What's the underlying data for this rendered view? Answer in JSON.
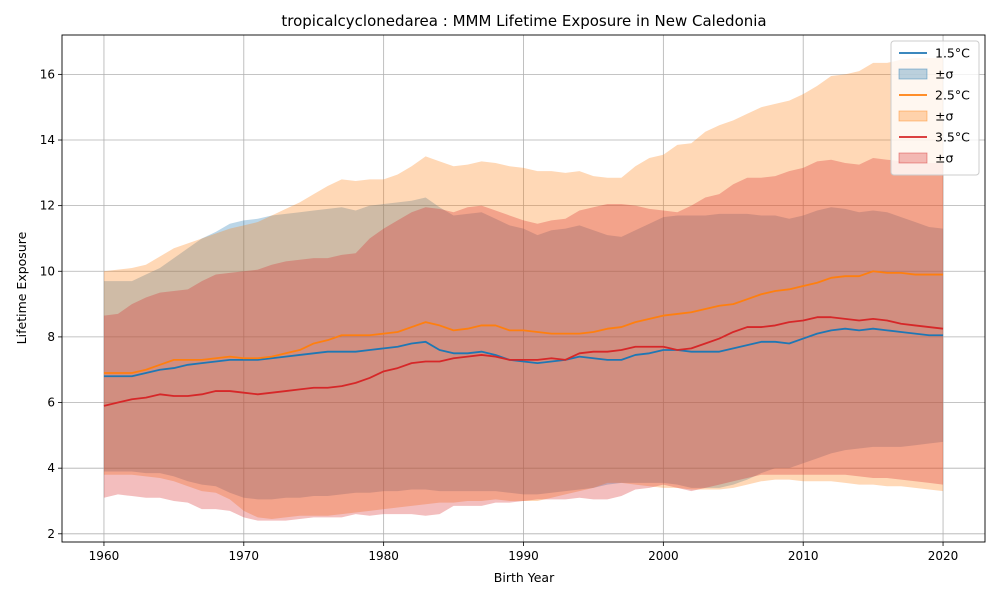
{
  "chart_data": {
    "type": "line",
    "title": "tropicalcyclonedarea : MMM Lifetime Exposure in New Caledonia",
    "xlabel": "Birth Year",
    "ylabel": "Lifetime Exposure",
    "xlim": [
      1957,
      2023
    ],
    "ylim": [
      1.75,
      17.2
    ],
    "xticks": [
      1960,
      1970,
      1980,
      1990,
      2000,
      2010,
      2020
    ],
    "yticks": [
      2,
      4,
      6,
      8,
      10,
      12,
      14,
      16
    ],
    "grid": true,
    "legend_position": "top-right",
    "x_start": 1960,
    "x_step": 1,
    "series": [
      {
        "name": "1.5°C",
        "band_name": "±σ",
        "color": "#1f77b4",
        "band_color": "#1f77b4",
        "band_alpha": 0.3,
        "mean": [
          6.8,
          6.8,
          6.8,
          6.9,
          7.0,
          7.05,
          7.15,
          7.2,
          7.25,
          7.3,
          7.3,
          7.3,
          7.35,
          7.4,
          7.45,
          7.5,
          7.55,
          7.55,
          7.55,
          7.6,
          7.65,
          7.7,
          7.8,
          7.85,
          7.6,
          7.5,
          7.5,
          7.55,
          7.45,
          7.3,
          7.25,
          7.2,
          7.25,
          7.3,
          7.4,
          7.35,
          7.3,
          7.3,
          7.45,
          7.5,
          7.6,
          7.6,
          7.55,
          7.55,
          7.55,
          7.65,
          7.75,
          7.85,
          7.85,
          7.8,
          7.95,
          8.1,
          8.2,
          8.25,
          8.2,
          8.25,
          8.2,
          8.15,
          8.1,
          8.05,
          8.05
        ],
        "upper": [
          9.7,
          9.7,
          9.7,
          9.9,
          10.1,
          10.4,
          10.7,
          11.0,
          11.2,
          11.45,
          11.55,
          11.6,
          11.7,
          11.75,
          11.8,
          11.85,
          11.9,
          11.95,
          11.85,
          12.0,
          12.05,
          12.1,
          12.15,
          12.25,
          11.95,
          11.7,
          11.75,
          11.8,
          11.6,
          11.4,
          11.3,
          11.1,
          11.25,
          11.3,
          11.4,
          11.25,
          11.1,
          11.05,
          11.25,
          11.45,
          11.65,
          11.7,
          11.7,
          11.7,
          11.75,
          11.75,
          11.75,
          11.7,
          11.7,
          11.6,
          11.7,
          11.85,
          11.95,
          11.9,
          11.8,
          11.85,
          11.8,
          11.65,
          11.5,
          11.35,
          11.3
        ],
        "lower": [
          3.9,
          3.9,
          3.9,
          3.85,
          3.85,
          3.75,
          3.6,
          3.5,
          3.45,
          3.25,
          3.1,
          3.05,
          3.05,
          3.1,
          3.1,
          3.15,
          3.15,
          3.2,
          3.25,
          3.25,
          3.3,
          3.3,
          3.35,
          3.35,
          3.3,
          3.3,
          3.3,
          3.3,
          3.3,
          3.25,
          3.2,
          3.2,
          3.25,
          3.3,
          3.35,
          3.4,
          3.5,
          3.55,
          3.55,
          3.55,
          3.55,
          3.5,
          3.4,
          3.4,
          3.4,
          3.5,
          3.65,
          3.85,
          4.0,
          4.0,
          4.15,
          4.3,
          4.45,
          4.55,
          4.6,
          4.65,
          4.65,
          4.65,
          4.7,
          4.75,
          4.8
        ]
      },
      {
        "name": "2.5°C",
        "band_name": "±σ",
        "color": "#ff7f0e",
        "band_color": "#ff7f0e",
        "band_alpha": 0.3,
        "mean": [
          6.9,
          6.9,
          6.9,
          7.0,
          7.15,
          7.3,
          7.3,
          7.3,
          7.35,
          7.4,
          7.35,
          7.35,
          7.4,
          7.5,
          7.6,
          7.8,
          7.9,
          8.05,
          8.05,
          8.05,
          8.1,
          8.15,
          8.3,
          8.45,
          8.35,
          8.2,
          8.25,
          8.35,
          8.35,
          8.2,
          8.2,
          8.15,
          8.1,
          8.1,
          8.1,
          8.15,
          8.25,
          8.3,
          8.45,
          8.55,
          8.65,
          8.7,
          8.75,
          8.85,
          8.95,
          9.0,
          9.15,
          9.3,
          9.4,
          9.45,
          9.55,
          9.65,
          9.8,
          9.85,
          9.85,
          10.0,
          9.95,
          9.95,
          9.9,
          9.9,
          9.9
        ],
        "upper": [
          10.0,
          10.05,
          10.1,
          10.2,
          10.45,
          10.7,
          10.85,
          11.0,
          11.15,
          11.3,
          11.4,
          11.5,
          11.7,
          11.9,
          12.1,
          12.35,
          12.6,
          12.8,
          12.75,
          12.8,
          12.8,
          12.95,
          13.2,
          13.5,
          13.35,
          13.2,
          13.25,
          13.35,
          13.3,
          13.2,
          13.15,
          13.05,
          13.05,
          13.0,
          13.05,
          12.9,
          12.85,
          12.85,
          13.2,
          13.45,
          13.55,
          13.85,
          13.9,
          14.25,
          14.45,
          14.6,
          14.8,
          15.0,
          15.1,
          15.2,
          15.4,
          15.65,
          15.95,
          16.0,
          16.1,
          16.35,
          16.35,
          16.45,
          16.5,
          16.5,
          16.5
        ],
        "lower": [
          3.8,
          3.8,
          3.8,
          3.75,
          3.7,
          3.6,
          3.45,
          3.3,
          3.25,
          3.05,
          2.7,
          2.5,
          2.45,
          2.5,
          2.55,
          2.55,
          2.55,
          2.6,
          2.65,
          2.7,
          2.75,
          2.8,
          2.85,
          2.9,
          2.95,
          2.95,
          3.0,
          3.0,
          3.05,
          3.0,
          3.0,
          3.0,
          3.1,
          3.2,
          3.3,
          3.4,
          3.55,
          3.55,
          3.5,
          3.45,
          3.4,
          3.4,
          3.35,
          3.35,
          3.35,
          3.4,
          3.5,
          3.6,
          3.65,
          3.65,
          3.6,
          3.6,
          3.6,
          3.55,
          3.5,
          3.5,
          3.45,
          3.45,
          3.4,
          3.35,
          3.3
        ]
      },
      {
        "name": "3.5°C",
        "band_name": "±σ",
        "color": "#d62728",
        "band_color": "#d62728",
        "band_alpha": 0.3,
        "mean": [
          5.9,
          6.0,
          6.1,
          6.15,
          6.25,
          6.2,
          6.2,
          6.25,
          6.35,
          6.35,
          6.3,
          6.25,
          6.3,
          6.35,
          6.4,
          6.45,
          6.45,
          6.5,
          6.6,
          6.75,
          6.95,
          7.05,
          7.2,
          7.25,
          7.25,
          7.35,
          7.4,
          7.45,
          7.4,
          7.3,
          7.3,
          7.3,
          7.35,
          7.3,
          7.5,
          7.55,
          7.55,
          7.6,
          7.7,
          7.7,
          7.7,
          7.6,
          7.65,
          7.8,
          7.95,
          8.15,
          8.3,
          8.3,
          8.35,
          8.45,
          8.5,
          8.6,
          8.6,
          8.55,
          8.5,
          8.55,
          8.5,
          8.4,
          8.35,
          8.3,
          8.25
        ],
        "upper": [
          8.65,
          8.7,
          9.0,
          9.2,
          9.35,
          9.4,
          9.45,
          9.7,
          9.9,
          9.95,
          10.0,
          10.05,
          10.2,
          10.3,
          10.35,
          10.4,
          10.4,
          10.5,
          10.55,
          11.0,
          11.3,
          11.55,
          11.8,
          11.95,
          11.9,
          11.8,
          11.95,
          12.0,
          11.85,
          11.7,
          11.55,
          11.45,
          11.55,
          11.6,
          11.85,
          11.95,
          12.05,
          12.05,
          12.0,
          11.9,
          11.85,
          11.8,
          12.0,
          12.25,
          12.35,
          12.65,
          12.85,
          12.85,
          12.9,
          13.05,
          13.15,
          13.35,
          13.4,
          13.3,
          13.25,
          13.45,
          13.4,
          13.35,
          13.3,
          13.3,
          13.3
        ],
        "lower": [
          3.1,
          3.2,
          3.15,
          3.1,
          3.1,
          3.0,
          2.95,
          2.75,
          2.75,
          2.7,
          2.5,
          2.4,
          2.4,
          2.4,
          2.45,
          2.5,
          2.5,
          2.5,
          2.6,
          2.55,
          2.6,
          2.6,
          2.6,
          2.55,
          2.6,
          2.85,
          2.85,
          2.85,
          2.95,
          2.95,
          3.0,
          3.05,
          3.05,
          3.05,
          3.1,
          3.05,
          3.05,
          3.15,
          3.35,
          3.4,
          3.5,
          3.4,
          3.3,
          3.4,
          3.5,
          3.6,
          3.7,
          3.8,
          3.8,
          3.8,
          3.8,
          3.8,
          3.8,
          3.8,
          3.75,
          3.7,
          3.7,
          3.65,
          3.6,
          3.55,
          3.5
        ]
      }
    ]
  }
}
